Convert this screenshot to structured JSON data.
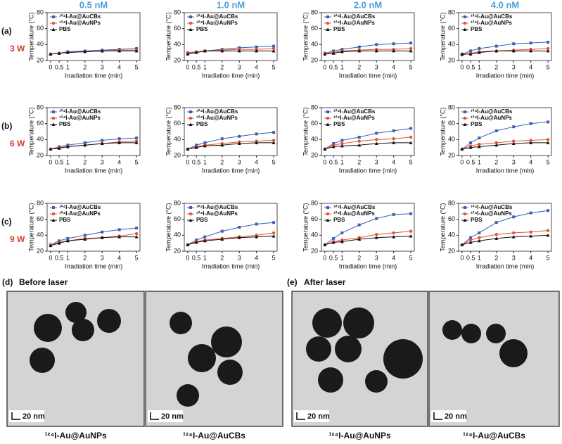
{
  "columns": [
    "0.5 nM",
    "1.0 nM",
    "2.0 nM",
    "4.0 nM"
  ],
  "rows": [
    {
      "label": "(a)",
      "power": "3 W"
    },
    {
      "label": "(b)",
      "power": "6 W"
    },
    {
      "label": "(c)",
      "power": "9 W"
    }
  ],
  "panels": [
    {
      "label": "(d)",
      "title": "Before laser",
      "images": [
        {
          "scale": "20 nm",
          "caption": "¹²⁴I-Au@AuNPs"
        },
        {
          "scale": "20 nm",
          "caption": "¹²⁴I-Au@AuCBs"
        }
      ]
    },
    {
      "label": "(e)",
      "title": "After laser",
      "images": [
        {
          "scale": "20 nm",
          "caption": "¹²⁴I-Au@AuNPs"
        },
        {
          "scale": "20 nm",
          "caption": "¹²⁴I-Au@AuCBs"
        }
      ]
    }
  ],
  "chart_data": [
    {
      "type": "line",
      "x": [
        0,
        0.5,
        1,
        2,
        3,
        4,
        5
      ],
      "xlim": [
        -0.2,
        5.2
      ],
      "xticks": [
        0,
        0.5,
        1,
        2,
        3,
        4,
        5
      ],
      "ylim": [
        20,
        80
      ],
      "yticks": [
        20,
        40,
        60,
        80
      ],
      "xlabel": "Irradiation time (min)",
      "ylabel": "Temperature (°C)",
      "legend": "upper left",
      "series": [
        {
          "name": "¹²⁴I-Au@AuCBs",
          "color": "#3b5fb5",
          "marker": "square",
          "values": [
            28,
            29,
            31,
            32,
            33,
            34,
            35
          ]
        },
        {
          "name": "¹²⁴I-Au@AuNPs",
          "color": "#e8502e",
          "marker": "circle",
          "values": [
            28,
            29,
            30,
            31,
            32,
            33,
            33
          ]
        },
        {
          "name": "PBS",
          "color": "#111111",
          "marker": "triangle",
          "values": [
            28,
            29,
            30,
            31,
            32,
            32,
            32
          ]
        }
      ]
    },
    {
      "type": "line",
      "x": [
        0,
        0.5,
        1,
        2,
        3,
        4,
        5
      ],
      "xlim": [
        -0.2,
        5.2
      ],
      "xticks": [
        0,
        0.5,
        1,
        2,
        3,
        4,
        5
      ],
      "ylim": [
        20,
        80
      ],
      "yticks": [
        20,
        40,
        60,
        80
      ],
      "xlabel": "Irradiation time (min)",
      "ylabel": "Temperature (°C)",
      "legend": "upper left",
      "series": [
        {
          "name": "¹²⁴I-Au@AuCBs",
          "color": "#3b5fb5",
          "marker": "square",
          "values": [
            29,
            30,
            32,
            34,
            36,
            37,
            38
          ]
        },
        {
          "name": "¹²⁴I-Au@AuNPs",
          "color": "#e8502e",
          "marker": "circle",
          "values": [
            30,
            31,
            32,
            33,
            34,
            34,
            35
          ]
        },
        {
          "name": "PBS",
          "color": "#111111",
          "marker": "triangle",
          "values": [
            28,
            30,
            32,
            32,
            32,
            32,
            32
          ]
        }
      ]
    },
    {
      "type": "line",
      "x": [
        0,
        0.5,
        1,
        2,
        3,
        4,
        5
      ],
      "xlim": [
        -0.2,
        5.2
      ],
      "xticks": [
        0,
        0.5,
        1,
        2,
        3,
        4,
        5
      ],
      "ylim": [
        20,
        80
      ],
      "yticks": [
        20,
        40,
        60,
        80
      ],
      "xlabel": "Irradiation time (min)",
      "ylabel": "Temperature (°C)",
      "legend": "upper left",
      "series": [
        {
          "name": "¹²⁴I-Au@AuCBs",
          "color": "#3b5fb5",
          "marker": "square",
          "values": [
            29,
            32,
            34,
            37,
            40,
            41,
            42
          ]
        },
        {
          "name": "¹²⁴I-Au@AuNPs",
          "color": "#e8502e",
          "marker": "circle",
          "values": [
            29,
            30,
            32,
            33,
            34,
            34,
            35
          ]
        },
        {
          "name": "PBS",
          "color": "#111111",
          "marker": "triangle",
          "values": [
            28,
            29,
            31,
            32,
            32,
            32,
            32
          ]
        }
      ]
    },
    {
      "type": "line",
      "x": [
        0,
        0.5,
        1,
        2,
        3,
        4,
        5
      ],
      "xlim": [
        -0.2,
        5.2
      ],
      "xticks": [
        0,
        0.5,
        1,
        2,
        3,
        4,
        5
      ],
      "ylim": [
        20,
        80
      ],
      "yticks": [
        20,
        40,
        60,
        80
      ],
      "xlabel": "Irradiation time (min)",
      "ylabel": "Temperature (°C)",
      "legend": "upper left",
      "series": [
        {
          "name": "¹²⁴I-Au@AuCBs",
          "color": "#3b5fb5",
          "marker": "square",
          "values": [
            28,
            32,
            35,
            38,
            41,
            42,
            43
          ]
        },
        {
          "name": "¹²⁴I-Au@AuNPs",
          "color": "#e8502e",
          "marker": "circle",
          "values": [
            27,
            29,
            31,
            32,
            33,
            34,
            35
          ]
        },
        {
          "name": "PBS",
          "color": "#111111",
          "marker": "triangle",
          "values": [
            28,
            28,
            30,
            32,
            32,
            32,
            32
          ]
        }
      ]
    },
    {
      "type": "line",
      "x": [
        0,
        0.5,
        1,
        2,
        3,
        4,
        5
      ],
      "xlim": [
        -0.2,
        5.2
      ],
      "xticks": [
        0,
        0.5,
        1,
        2,
        3,
        4,
        5
      ],
      "ylim": [
        20,
        80
      ],
      "yticks": [
        20,
        40,
        60,
        80
      ],
      "xlabel": "Irradiation time (min)",
      "ylabel": "Temperature (°C)",
      "legend": "upper left",
      "series": [
        {
          "name": "¹²⁴I-Au@AuCBs",
          "color": "#3b5fb5",
          "marker": "square",
          "values": [
            28,
            31,
            33,
            36,
            39,
            41,
            42
          ]
        },
        {
          "name": "¹²⁴I-Au@AuNPs",
          "color": "#e8502e",
          "marker": "circle",
          "values": [
            28,
            30,
            31,
            33,
            35,
            37,
            38
          ]
        },
        {
          "name": "PBS",
          "color": "#111111",
          "marker": "triangle",
          "values": [
            28,
            29,
            31,
            33,
            35,
            36,
            36
          ]
        }
      ]
    },
    {
      "type": "line",
      "x": [
        0,
        0.5,
        1,
        2,
        3,
        4,
        5
      ],
      "xlim": [
        -0.2,
        5.2
      ],
      "xticks": [
        0,
        0.5,
        1,
        2,
        3,
        4,
        5
      ],
      "ylim": [
        20,
        80
      ],
      "yticks": [
        20,
        40,
        60,
        80
      ],
      "xlabel": "Irradiation time (min)",
      "ylabel": "Temperature (°C)",
      "legend": "upper left",
      "series": [
        {
          "name": "¹²⁴I-Au@AuCBs",
          "color": "#3b5fb5",
          "marker": "square",
          "values": [
            28,
            33,
            36,
            41,
            44,
            47,
            49
          ]
        },
        {
          "name": "¹²⁴I-Au@AuNPs",
          "color": "#e8502e",
          "marker": "circle",
          "values": [
            28,
            31,
            33,
            35,
            37,
            38,
            39
          ]
        },
        {
          "name": "PBS",
          "color": "#111111",
          "marker": "triangle",
          "values": [
            28,
            30,
            32,
            33,
            35,
            36,
            36
          ]
        }
      ]
    },
    {
      "type": "line",
      "x": [
        0,
        0.5,
        1,
        2,
        3,
        4,
        5
      ],
      "xlim": [
        -0.2,
        5.2
      ],
      "xticks": [
        0,
        0.5,
        1,
        2,
        3,
        4,
        5
      ],
      "ylim": [
        20,
        80
      ],
      "yticks": [
        20,
        40,
        60,
        80
      ],
      "xlabel": "Irradiation time (min)",
      "ylabel": "Temperature (°C)",
      "legend": "upper left",
      "series": [
        {
          "name": "¹²⁴I-Au@AuCBs",
          "color": "#3b5fb5",
          "marker": "square",
          "values": [
            28,
            35,
            39,
            43,
            48,
            51,
            54
          ]
        },
        {
          "name": "¹²⁴I-Au@AuNPs",
          "color": "#e8502e",
          "marker": "circle",
          "values": [
            28,
            33,
            35,
            38,
            40,
            41,
            43
          ]
        },
        {
          "name": "PBS",
          "color": "#111111",
          "marker": "triangle",
          "values": [
            28,
            31,
            32,
            33,
            35,
            36,
            36
          ]
        }
      ]
    },
    {
      "type": "line",
      "x": [
        0,
        0.5,
        1,
        2,
        3,
        4,
        5
      ],
      "xlim": [
        -0.2,
        5.2
      ],
      "xticks": [
        0,
        0.5,
        1,
        2,
        3,
        4,
        5
      ],
      "ylim": [
        20,
        80
      ],
      "yticks": [
        20,
        40,
        60,
        80
      ],
      "xlabel": "Irradiation time (min)",
      "ylabel": "Temperature (°C)",
      "legend": "upper left",
      "series": [
        {
          "name": "¹²⁴I-Au@AuCBs",
          "color": "#3b5fb5",
          "marker": "square",
          "values": [
            28,
            36,
            42,
            51,
            56,
            60,
            62
          ]
        },
        {
          "name": "¹²⁴I-Au@AuNPs",
          "color": "#e8502e",
          "marker": "circle",
          "values": [
            28,
            32,
            34,
            36,
            38,
            39,
            40
          ]
        },
        {
          "name": "PBS",
          "color": "#111111",
          "marker": "triangle",
          "values": [
            28,
            30,
            31,
            33,
            35,
            36,
            36
          ]
        }
      ]
    },
    {
      "type": "line",
      "x": [
        0,
        0.5,
        1,
        2,
        3,
        4,
        5
      ],
      "xlim": [
        -0.2,
        5.2
      ],
      "xticks": [
        0,
        0.5,
        1,
        2,
        3,
        4,
        5
      ],
      "ylim": [
        20,
        80
      ],
      "yticks": [
        20,
        40,
        60,
        80
      ],
      "xlabel": "Irradiation time (min)",
      "ylabel": "Temperature (°C)",
      "legend": "upper left",
      "series": [
        {
          "name": "¹²⁴I-Au@AuCBs",
          "color": "#3b5fb5",
          "marker": "square",
          "values": [
            28,
            33,
            36,
            40,
            44,
            47,
            49
          ]
        },
        {
          "name": "¹²⁴I-Au@AuNPs",
          "color": "#e8502e",
          "marker": "circle",
          "values": [
            28,
            31,
            33,
            36,
            37,
            39,
            42
          ]
        },
        {
          "name": "PBS",
          "color": "#111111",
          "marker": "triangle",
          "values": [
            27,
            30,
            33,
            35,
            37,
            38,
            38
          ]
        }
      ]
    },
    {
      "type": "line",
      "x": [
        0,
        0.5,
        1,
        2,
        3,
        4,
        5
      ],
      "xlim": [
        -0.2,
        5.2
      ],
      "xticks": [
        0,
        0.5,
        1,
        2,
        3,
        4,
        5
      ],
      "ylim": [
        20,
        80
      ],
      "yticks": [
        20,
        40,
        60,
        80
      ],
      "xlabel": "Irradiation time (min)",
      "ylabel": "Temperature (°C)",
      "legend": "upper left",
      "series": [
        {
          "name": "¹²⁴I-Au@AuCBs",
          "color": "#3b5fb5",
          "marker": "square",
          "values": [
            28,
            34,
            38,
            45,
            50,
            54,
            56
          ]
        },
        {
          "name": "¹²⁴I-Au@AuNPs",
          "color": "#e8502e",
          "marker": "circle",
          "values": [
            28,
            32,
            34,
            36,
            38,
            40,
            43
          ]
        },
        {
          "name": "PBS",
          "color": "#111111",
          "marker": "triangle",
          "values": [
            28,
            31,
            33,
            35,
            37,
            38,
            39
          ]
        }
      ]
    },
    {
      "type": "line",
      "x": [
        0,
        0.5,
        1,
        2,
        3,
        4,
        5
      ],
      "xlim": [
        -0.2,
        5.2
      ],
      "xticks": [
        0,
        0.5,
        1,
        2,
        3,
        4,
        5
      ],
      "ylim": [
        20,
        80
      ],
      "yticks": [
        20,
        40,
        60,
        80
      ],
      "xlabel": "Irradiation time (min)",
      "ylabel": "Temperature (°C)",
      "legend": "upper left",
      "series": [
        {
          "name": "¹²⁴I-Au@AuCBs",
          "color": "#3b5fb5",
          "marker": "square",
          "values": [
            28,
            36,
            43,
            53,
            61,
            66,
            67
          ]
        },
        {
          "name": "¹²⁴I-Au@AuNPs",
          "color": "#e8502e",
          "marker": "circle",
          "values": [
            28,
            32,
            34,
            37,
            41,
            43,
            45
          ]
        },
        {
          "name": "PBS",
          "color": "#111111",
          "marker": "triangle",
          "values": [
            28,
            31,
            32,
            35,
            37,
            38,
            39
          ]
        }
      ]
    },
    {
      "type": "line",
      "x": [
        0,
        0.5,
        1,
        2,
        3,
        4,
        5
      ],
      "xlim": [
        -0.2,
        5.2
      ],
      "xticks": [
        0,
        0.5,
        1,
        2,
        3,
        4,
        5
      ],
      "ylim": [
        20,
        80
      ],
      "yticks": [
        20,
        40,
        60,
        80
      ],
      "xlabel": "Irradiation time (min)",
      "ylabel": "Temperature (°C)",
      "legend": "upper left",
      "series": [
        {
          "name": "¹²⁴I-Au@AuCBs",
          "color": "#3b5fb5",
          "marker": "square",
          "values": [
            28,
            37,
            43,
            56,
            63,
            68,
            71
          ]
        },
        {
          "name": "¹²⁴I-Au@AuNPs",
          "color": "#e8502e",
          "marker": "circle",
          "values": [
            28,
            34,
            37,
            41,
            43,
            44,
            46
          ]
        },
        {
          "name": "PBS",
          "color": "#111111",
          "marker": "triangle",
          "values": [
            28,
            31,
            33,
            36,
            38,
            39,
            40
          ]
        }
      ]
    }
  ]
}
